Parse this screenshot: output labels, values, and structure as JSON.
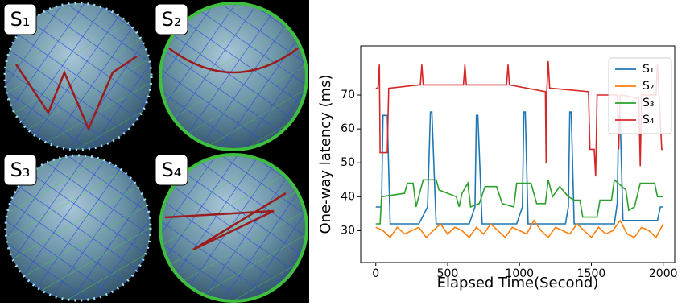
{
  "globe_panels": {
    "labels": [
      "S₁",
      "S₂",
      "S₃",
      "S₄"
    ]
  },
  "chart_data": {
    "type": "line",
    "ylabel": "One-way latency (ms)",
    "xlabel": "Elapsed Time(Second)",
    "xlim": [
      -105,
      2080
    ],
    "xticks": [
      0,
      500,
      1000,
      1500,
      2000
    ],
    "ylim": [
      20.6,
      84.5
    ],
    "yticks": [
      30,
      40,
      50,
      60,
      70
    ],
    "legend": "upper right",
    "series": [
      {
        "name": "S₁",
        "color": "#1f77b4",
        "x": [
          0,
          40,
          50,
          80,
          100,
          300,
          360,
          380,
          390,
          420,
          650,
          690,
          700,
          710,
          740,
          980,
          1020,
          1030,
          1040,
          1060,
          1320,
          1340,
          1350,
          1360,
          1380,
          1660,
          1680,
          1690,
          1700,
          1720,
          1960,
          1980,
          2000
        ],
        "values": [
          37,
          37,
          64,
          64,
          32,
          32,
          37,
          65,
          65,
          32,
          32,
          37,
          64,
          64,
          32,
          32,
          37,
          65,
          65,
          32,
          32,
          37,
          65,
          65,
          32,
          32,
          38,
          64,
          64,
          33,
          33,
          37,
          37
        ]
      },
      {
        "name": "S₂",
        "color": "#ff7f0e",
        "x": [
          0,
          50,
          100,
          150,
          200,
          250,
          300,
          350,
          400,
          450,
          500,
          550,
          600,
          650,
          700,
          750,
          800,
          850,
          900,
          950,
          1000,
          1050,
          1100,
          1150,
          1200,
          1250,
          1300,
          1350,
          1400,
          1450,
          1500,
          1550,
          1600,
          1650,
          1700,
          1750,
          1800,
          1850,
          1900,
          1950,
          2000
        ],
        "values": [
          31,
          30,
          28,
          31,
          29,
          30,
          31,
          28,
          30,
          32,
          29,
          31,
          30,
          28,
          31,
          29,
          32,
          30,
          28,
          31,
          30,
          29,
          33,
          30,
          28,
          31,
          30,
          29,
          32,
          30,
          28,
          31,
          29,
          30,
          33,
          29,
          28,
          31,
          30,
          28,
          32
        ]
      },
      {
        "name": "S₃",
        "color": "#2ca02c",
        "x": [
          0,
          30,
          40,
          200,
          220,
          260,
          280,
          330,
          420,
          440,
          560,
          580,
          600,
          640,
          660,
          720,
          760,
          840,
          880,
          960,
          980,
          1000,
          1080,
          1120,
          1180,
          1200,
          1230,
          1280,
          1340,
          1380,
          1420,
          1440,
          1540,
          1560,
          1640,
          1660,
          1740,
          1760,
          1800,
          1840,
          1940,
          1960,
          2000
        ],
        "values": [
          32,
          32,
          40,
          41,
          44,
          44,
          37,
          45,
          45,
          42,
          40,
          37,
          41,
          44,
          37,
          38,
          43,
          43,
          38,
          37,
          44,
          44,
          44,
          38,
          38,
          45,
          40,
          43,
          40,
          39,
          39,
          34,
          34,
          39,
          39,
          45,
          42,
          36,
          37,
          44,
          44,
          40,
          40
        ]
      },
      {
        "name": "S₄",
        "color": "#d62728",
        "x": [
          0,
          15,
          25,
          30,
          80,
          90,
          300,
          310,
          320,
          330,
          600,
          610,
          620,
          630,
          900,
          910,
          920,
          930,
          1180,
          1185,
          1190,
          1200,
          1210,
          1220,
          1480,
          1490,
          1520,
          1530,
          1540,
          1680,
          1690,
          1700,
          1710,
          1830,
          1840,
          1850,
          1860,
          1950,
          1960,
          1990,
          2000
        ],
        "values": [
          72,
          72,
          79,
          53,
          53,
          72,
          73,
          73,
          79,
          73,
          73,
          73,
          79,
          73,
          73,
          73,
          79,
          73,
          71,
          50,
          71,
          80,
          72,
          72,
          71,
          54,
          54,
          46,
          70,
          70,
          54,
          70,
          70,
          69,
          49,
          70,
          70,
          70,
          79,
          54,
          54
        ]
      }
    ]
  }
}
